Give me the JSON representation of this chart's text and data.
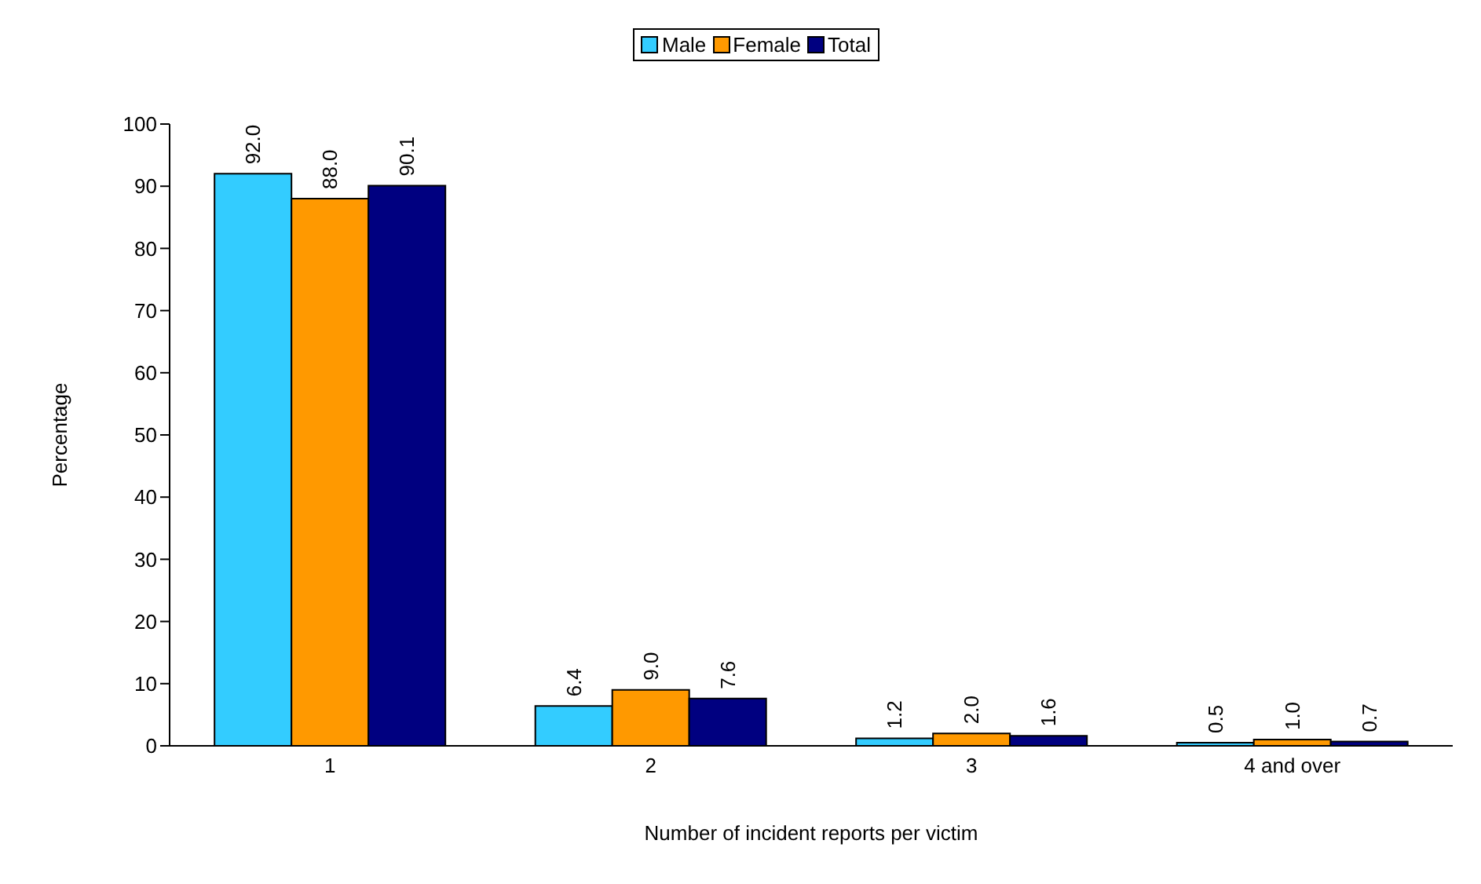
{
  "chart_data": {
    "type": "bar",
    "xlabel": "Number of incident reports per victim",
    "ylabel": "Percentage",
    "categories": [
      "1",
      "2",
      "3",
      "4 and over"
    ],
    "series": [
      {
        "name": "Male",
        "color": "#33ccff",
        "values": [
          92.0,
          6.4,
          1.2,
          0.5
        ],
        "value_labels": [
          "92.0",
          "6.4",
          "1.2",
          "0.5"
        ]
      },
      {
        "name": "Female",
        "color": "#ff9900",
        "values": [
          88.0,
          9.0,
          2.0,
          1.0
        ],
        "value_labels": [
          "88.0",
          "9.0",
          "2.0",
          "1.0"
        ]
      },
      {
        "name": "Total",
        "color": "#000080",
        "values": [
          90.1,
          7.6,
          1.6,
          0.7
        ],
        "value_labels": [
          "90.1",
          "7.6",
          "1.6",
          "0.7"
        ]
      }
    ],
    "ylim": [
      0,
      100
    ],
    "yticks": [
      0,
      10,
      20,
      30,
      40,
      50,
      60,
      70,
      80,
      90,
      100
    ],
    "grid": false,
    "legend": "top"
  }
}
